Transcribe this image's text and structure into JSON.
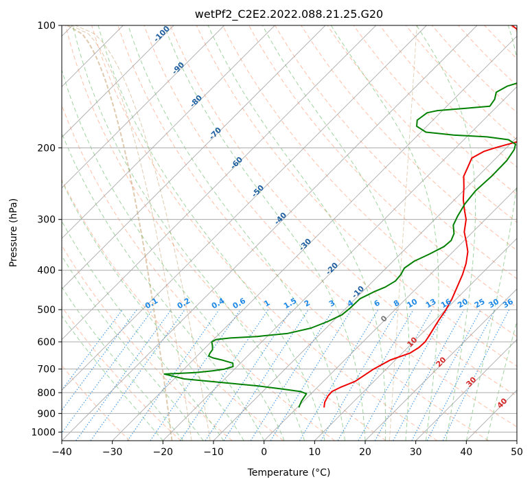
{
  "chart_data": {
    "type": "line",
    "title": "wetPf2_C2E2.2022.088.21.25.G20",
    "xlabel": "Temperature (°C)",
    "ylabel": "Pressure (hPa)",
    "xlim": [
      -40,
      50
    ],
    "ylim": [
      1050,
      100
    ],
    "y_scale": "log",
    "x_ticks": [
      "−40",
      "−30",
      "−20",
      "−10",
      "0",
      "10",
      "20",
      "30",
      "40",
      "50"
    ],
    "x_tick_values": [
      -40,
      -30,
      -20,
      -10,
      0,
      10,
      20,
      30,
      40,
      50
    ],
    "y_ticks": [
      "100",
      "200",
      "300",
      "400",
      "500",
      "600",
      "700",
      "800",
      "900",
      "1000"
    ],
    "y_tick_values": [
      100,
      200,
      300,
      400,
      500,
      600,
      700,
      800,
      900,
      1000
    ],
    "grid": true,
    "colors": {
      "temperature": "#ee0000",
      "dewpoint": "#008000",
      "isotherm": "#999999",
      "dry_adiabat": "#ff7f50",
      "moist_adiabat": "#2ca02c",
      "mixing_ratio": "#1e88e5",
      "ccl_curve": "#d2b48c",
      "dry_label": "#1f5fa0",
      "mixing_label": "#1e88e5",
      "moist_label": "#d62728",
      "gray_label": "#777777"
    },
    "series": [
      {
        "key": "temperature",
        "points": [
          [
            5.3,
            870
          ],
          [
            4.4,
            845
          ],
          [
            3.8,
            815
          ],
          [
            3.7,
            795
          ],
          [
            4.6,
            775
          ],
          [
            6.3,
            750
          ],
          [
            7.0,
            720
          ],
          [
            7.5,
            700
          ],
          [
            9.0,
            665
          ],
          [
            11.5,
            640
          ],
          [
            12.2,
            620
          ],
          [
            12.3,
            600
          ],
          [
            11.9,
            580
          ],
          [
            11.3,
            555
          ],
          [
            10.7,
            530
          ],
          [
            10.2,
            505
          ],
          [
            9.1,
            470
          ],
          [
            7.8,
            440
          ],
          [
            6.4,
            410
          ],
          [
            4.9,
            385
          ],
          [
            2.9,
            360
          ],
          [
            0.6,
            340
          ],
          [
            -1.7,
            322
          ],
          [
            -3.8,
            300
          ],
          [
            -5.9,
            285
          ],
          [
            -8.3,
            268
          ],
          [
            -10.6,
            250
          ],
          [
            -12.8,
            235
          ],
          [
            -13.9,
            222
          ],
          [
            -14.8,
            212
          ],
          [
            -13.7,
            204
          ],
          [
            -12.2,
            200
          ],
          [
            -9.9,
            195
          ],
          [
            -6.8,
            189
          ],
          [
            -4.4,
            183
          ],
          [
            -4.1,
            176
          ],
          [
            -6.3,
            170
          ],
          [
            -9.5,
            162
          ],
          [
            -12.6,
            152
          ],
          [
            -15.0,
            144
          ],
          [
            -18.2,
            135
          ],
          [
            -21.6,
            125
          ],
          [
            -24.9,
            116
          ],
          [
            -28.4,
            108
          ],
          [
            -31.5,
            102
          ],
          [
            -33.1,
            100
          ]
        ]
      },
      {
        "key": "dewpoint",
        "points": [
          [
            0.3,
            870
          ],
          [
            -0.4,
            840
          ],
          [
            -0.9,
            805
          ],
          [
            -2.5,
            795
          ],
          [
            -6.0,
            785
          ],
          [
            -12.0,
            770
          ],
          [
            -20.0,
            755
          ],
          [
            -28.0,
            740
          ],
          [
            -32.9,
            720
          ],
          [
            -31.0,
            718
          ],
          [
            -27.0,
            714
          ],
          [
            -24.0,
            707
          ],
          [
            -22.0,
            700
          ],
          [
            -20.8,
            690
          ],
          [
            -21.5,
            677
          ],
          [
            -24.0,
            666
          ],
          [
            -26.5,
            657
          ],
          [
            -27.7,
            650
          ],
          [
            -28.0,
            640
          ],
          [
            -28.2,
            627
          ],
          [
            -29.0,
            613
          ],
          [
            -29.9,
            600
          ],
          [
            -29.5,
            592
          ],
          [
            -27.0,
            587
          ],
          [
            -22.0,
            582
          ],
          [
            -16.5,
            572
          ],
          [
            -13.0,
            555
          ],
          [
            -11.0,
            535
          ],
          [
            -9.5,
            515
          ],
          [
            -9.2,
            495
          ],
          [
            -9.1,
            470
          ],
          [
            -7.7,
            452
          ],
          [
            -6.4,
            440
          ],
          [
            -5.6,
            425
          ],
          [
            -5.8,
            410
          ],
          [
            -6.4,
            395
          ],
          [
            -5.8,
            380
          ],
          [
            -4.2,
            365
          ],
          [
            -2.8,
            350
          ],
          [
            -2.6,
            338
          ],
          [
            -3.4,
            325
          ],
          [
            -5.2,
            310
          ],
          [
            -6.1,
            295
          ],
          [
            -7.1,
            275
          ],
          [
            -7.6,
            255
          ],
          [
            -7.3,
            235
          ],
          [
            -7.4,
            215
          ],
          [
            -8.1,
            202
          ],
          [
            -8.9,
            196
          ],
          [
            -11.2,
            191
          ],
          [
            -16.0,
            188
          ],
          [
            -23.0,
            186
          ],
          [
            -29.0,
            183
          ],
          [
            -32.0,
            177
          ],
          [
            -33.1,
            171
          ],
          [
            -32.6,
            164
          ],
          [
            -31.0,
            162
          ],
          [
            -26.0,
            160
          ],
          [
            -21.5,
            158
          ],
          [
            -21.9,
            152
          ],
          [
            -23.0,
            146
          ],
          [
            -22.0,
            141
          ],
          [
            -18.5,
            135
          ],
          [
            -15.0,
            126
          ],
          [
            -10.5,
            115
          ],
          [
            -6.5,
            105
          ],
          [
            -5.1,
            100
          ]
        ]
      }
    ],
    "annotations": {
      "dry_adiabat_labels": [
        "-100",
        "-90",
        "-80",
        "-70",
        "-60",
        "-50",
        "-40",
        "-30",
        "-20",
        "-10"
      ],
      "mixing_ratio_labels": [
        "0.1",
        "0.2",
        "0.4",
        "0.6",
        "1",
        "1.5",
        "2",
        "3",
        "4",
        "6",
        "8",
        "10",
        "13",
        "16",
        "20",
        "25",
        "30",
        "36"
      ],
      "moist_adiabat_labels": [
        "10",
        "20",
        "30",
        "40"
      ],
      "gray_label": "0"
    }
  }
}
